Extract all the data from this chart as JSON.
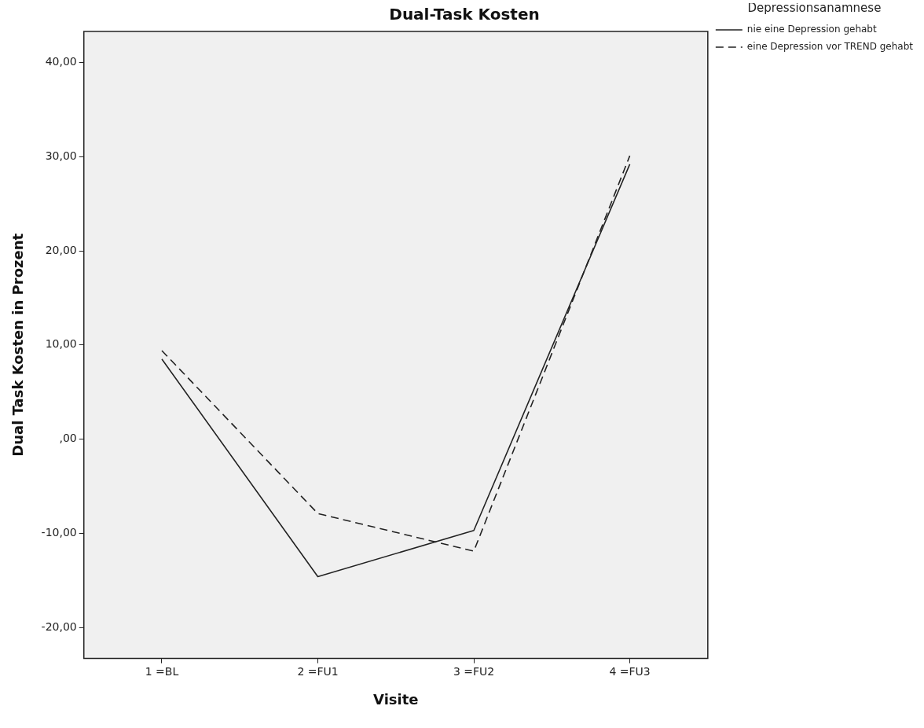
{
  "chart_data": {
    "type": "line",
    "title": "Dual-Task Kosten",
    "xlabel": "Visite",
    "ylabel": "Dual Task Kosten in Prozent",
    "legend_title": "Depressionsanamnese",
    "categories": [
      "1 =BL",
      "2 =FU1",
      "3 =FU2",
      "4 =FU3"
    ],
    "ylim": [
      -23.3,
      43.3
    ],
    "yticks": [
      {
        "value": -20,
        "label": "-20,00"
      },
      {
        "value": -10,
        "label": "-10,00"
      },
      {
        "value": 0,
        "label": ",00"
      },
      {
        "value": 10,
        "label": "10,00"
      },
      {
        "value": 20,
        "label": "20,00"
      },
      {
        "value": 30,
        "label": "30,00"
      },
      {
        "value": 40,
        "label": "40,00"
      }
    ],
    "series": [
      {
        "name": "nie eine Depression gehabt",
        "color": "#222222",
        "line_style": "solid",
        "values": [
          8.5,
          -14.6,
          -9.7,
          29.2
        ]
      },
      {
        "name": "eine Depression vor TREND gehabt",
        "color": "#222222",
        "line_style": "dashed",
        "values": [
          9.4,
          -7.9,
          -11.9,
          30.1
        ]
      }
    ],
    "grid": false,
    "legend": "top right",
    "marker": "none"
  }
}
